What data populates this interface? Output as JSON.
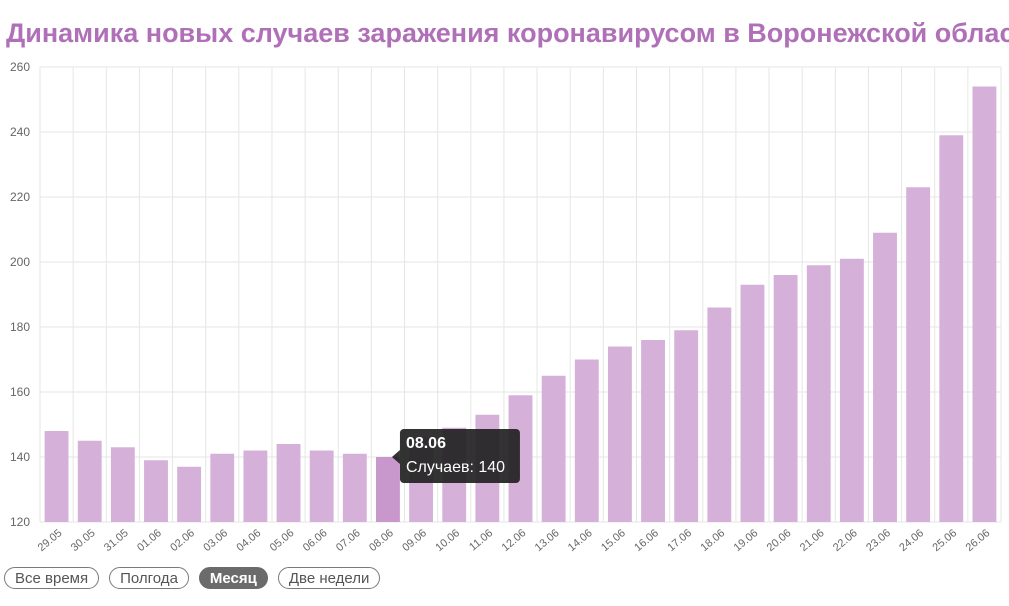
{
  "page": {
    "title": "Динамика новых случаев заражения коронавирусом в Воронежской области"
  },
  "colors": {
    "title": "#b070b8",
    "bar": "#d5b0d8",
    "bar_highlight": "#c898cc",
    "grid": "#e6e6e6",
    "tick_text": "#666666",
    "tooltip_bg": "#222222",
    "tooltip_text": "#ffffff"
  },
  "chart_data": {
    "type": "bar",
    "categories": [
      "29.05",
      "30.05",
      "31.05",
      "01.06",
      "02.06",
      "03.06",
      "04.06",
      "05.06",
      "06.06",
      "07.06",
      "08.06",
      "09.06",
      "10.06",
      "11.06",
      "12.06",
      "13.06",
      "14.06",
      "15.06",
      "16.06",
      "17.06",
      "18.06",
      "19.06",
      "20.06",
      "21.06",
      "22.06",
      "23.06",
      "24.06",
      "25.06",
      "26.06"
    ],
    "values": [
      148,
      145,
      143,
      139,
      137,
      141,
      142,
      144,
      142,
      141,
      140,
      146,
      149,
      153,
      159,
      165,
      170,
      174,
      176,
      179,
      186,
      193,
      196,
      199,
      201,
      209,
      223,
      239,
      254
    ],
    "ylim": [
      120,
      260
    ],
    "yticks": [
      120,
      140,
      160,
      180,
      200,
      220,
      240,
      260
    ],
    "grid": true,
    "tooltip": {
      "index": 10,
      "title": "08.06",
      "label": "Случаев: 140"
    }
  },
  "controls": [
    {
      "label": "Все время",
      "active": false
    },
    {
      "label": "Полгода",
      "active": false
    },
    {
      "label": "Месяц",
      "active": true
    },
    {
      "label": "Две недели",
      "active": false
    }
  ]
}
